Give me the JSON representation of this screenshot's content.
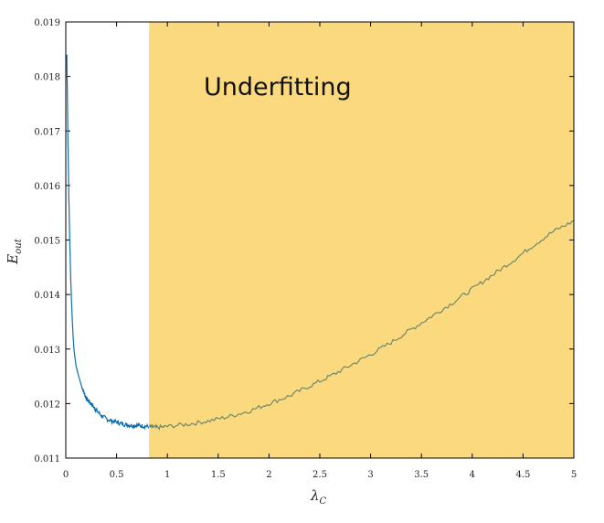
{
  "chart_data": {
    "type": "line",
    "title": "",
    "xlabel": "λ",
    "xlabel_sub": "C",
    "ylabel": "E",
    "ylabel_sub": "out",
    "xlim": [
      0,
      5
    ],
    "ylim": [
      0.011,
      0.019
    ],
    "x_ticks": [
      0,
      0.5,
      1,
      1.5,
      2,
      2.5,
      3,
      3.5,
      4,
      4.5,
      5
    ],
    "x_tick_labels": [
      "0",
      "0.5",
      "1",
      "1.5",
      "2",
      "2.5",
      "3",
      "3.5",
      "4",
      "4.5",
      "5"
    ],
    "y_ticks": [
      0.011,
      0.012,
      0.013,
      0.014,
      0.015,
      0.016,
      0.017,
      0.018,
      0.019
    ],
    "y_tick_labels": [
      "0.011",
      "0.012",
      "0.013",
      "0.014",
      "0.015",
      "0.016",
      "0.017",
      "0.018",
      "0.019"
    ],
    "grid": false,
    "shaded_region": {
      "x_start": 0.82,
      "x_end": 5,
      "color": "#fbd97e",
      "label": "Underfitting"
    },
    "series": [
      {
        "color": "#0a6eb0",
        "x": [
          0.01,
          0.02,
          0.03,
          0.04,
          0.05,
          0.06,
          0.07,
          0.08,
          0.1,
          0.12,
          0.15,
          0.18,
          0.2,
          0.22,
          0.25,
          0.28,
          0.3,
          0.35,
          0.4,
          0.45,
          0.5,
          0.55,
          0.6,
          0.65,
          0.7,
          0.75,
          0.8,
          0.85,
          0.9,
          1.0,
          1.2,
          1.4,
          1.6,
          1.8,
          2.0,
          2.2,
          2.4,
          2.6,
          2.8,
          3.0,
          3.2,
          3.4,
          3.6,
          3.8,
          4.0,
          4.2,
          4.4,
          4.6,
          4.8,
          5.0
        ],
        "values": [
          0.0184,
          0.017,
          0.0158,
          0.0149,
          0.0142,
          0.0137,
          0.0133,
          0.013,
          0.0127,
          0.01255,
          0.01235,
          0.0122,
          0.0121,
          0.01205,
          0.012,
          0.01192,
          0.01188,
          0.01178,
          0.01172,
          0.01168,
          0.01166,
          0.01163,
          0.01161,
          0.0116,
          0.0116,
          0.01159,
          0.01158,
          0.01157,
          0.01156,
          0.01158,
          0.01162,
          0.01168,
          0.01176,
          0.01186,
          0.012,
          0.01214,
          0.01232,
          0.0125,
          0.0127,
          0.0129,
          0.01312,
          0.01336,
          0.0136,
          0.01384,
          0.0141,
          0.01436,
          0.01462,
          0.0149,
          0.01516,
          0.01535
        ]
      }
    ]
  }
}
